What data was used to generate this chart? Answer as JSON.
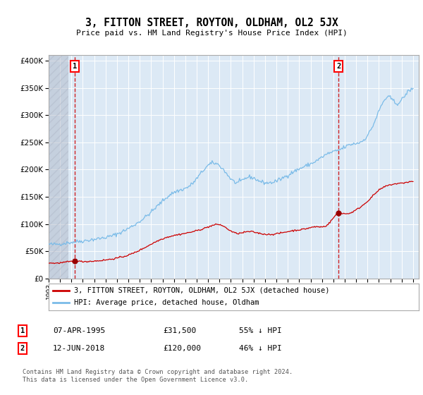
{
  "title": "3, FITTON STREET, ROYTON, OLDHAM, OL2 5JX",
  "subtitle": "Price paid vs. HM Land Registry's House Price Index (HPI)",
  "sale1_label": "07-APR-1995",
  "sale1_amount": "£31,500",
  "sale1_hpi": "55% ↓ HPI",
  "sale1_x": 1995.27,
  "sale1_y": 31500,
  "sale2_label": "12-JUN-2018",
  "sale2_amount": "£120,000",
  "sale2_hpi": "46% ↓ HPI",
  "sale2_x": 2018.45,
  "sale2_y": 120000,
  "legend1": "3, FITTON STREET, ROYTON, OLDHAM, OL2 5JX (detached house)",
  "legend2": "HPI: Average price, detached house, Oldham",
  "footer": "Contains HM Land Registry data © Crown copyright and database right 2024.\nThis data is licensed under the Open Government Licence v3.0.",
  "hpi_color": "#7abbe8",
  "price_color": "#cc0000",
  "marker_color": "#990000",
  "plot_bg": "#dce9f5",
  "fig_bg": "#ffffff",
  "ylim": [
    0,
    410000
  ],
  "xlim": [
    1993.0,
    2025.5
  ],
  "yticks": [
    0,
    50000,
    100000,
    150000,
    200000,
    250000,
    300000,
    350000,
    400000
  ],
  "hatch_xstart": 1993.0,
  "hatch_xend": 1994.75
}
